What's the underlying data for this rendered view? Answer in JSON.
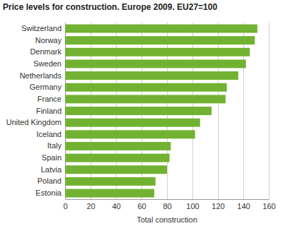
{
  "chart_data": {
    "type": "bar",
    "orientation": "horizontal",
    "title": "Price levels for construction. Europe 2009. EU27=100",
    "x_label": "Total construction",
    "categories": [
      "Switzerland",
      "Norway",
      "Denmark",
      "Sweden",
      "Netherlands",
      "Germany",
      "France",
      "Finland",
      "United Kingdom",
      "Iceland",
      "Italy",
      "Spain",
      "Latvia",
      "Poland",
      "Estonia"
    ],
    "values": [
      151,
      149,
      145,
      142,
      136,
      127,
      126,
      115,
      106,
      102,
      83,
      82,
      80,
      71,
      70
    ],
    "color": "#72b232",
    "xlim": [
      0,
      160
    ],
    "xticks": [
      0,
      20,
      40,
      60,
      80,
      100,
      120,
      140,
      160
    ],
    "grid": true
  }
}
